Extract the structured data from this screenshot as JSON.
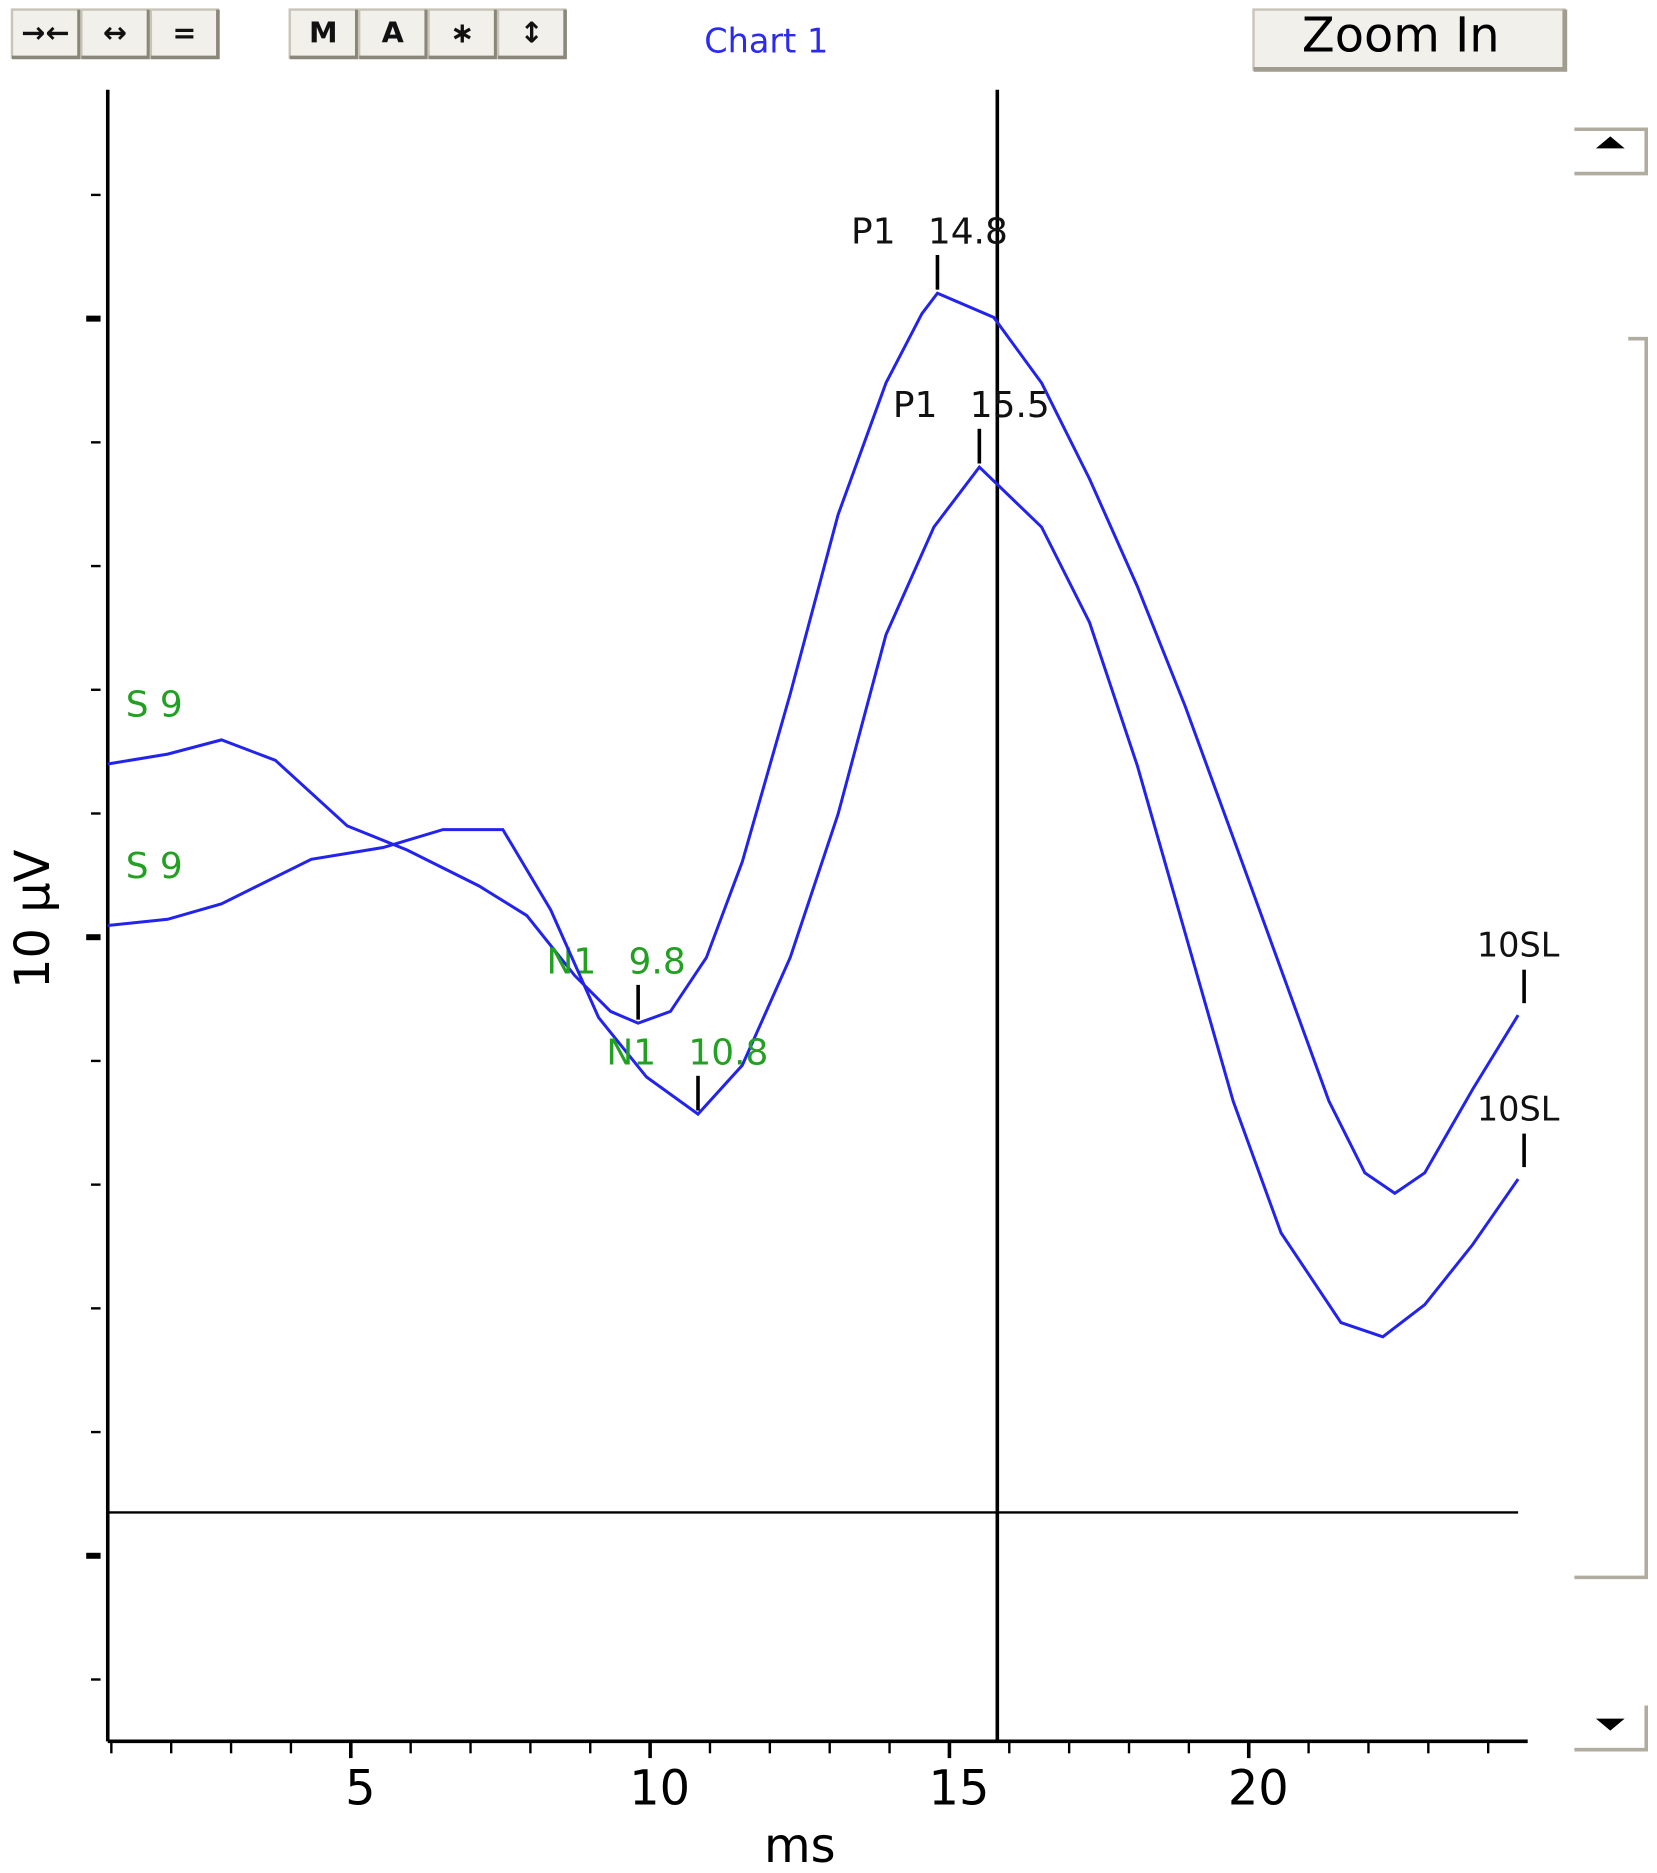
{
  "toolbar": {
    "buttons": [
      "→←",
      "↔",
      "=",
      "M",
      "A",
      "∗",
      "↕"
    ],
    "zoom": "Zoom In"
  },
  "chart_data": {
    "type": "line",
    "title": "Chart 1",
    "x_label": "ms",
    "y_label": "10 µV",
    "xlim": [
      0.94,
      24.5
    ],
    "ylim": [
      -3,
      23.7
    ],
    "xticks": [
      5,
      10,
      15,
      20
    ],
    "yticks": [
      -2,
      0,
      2,
      4,
      6,
      8,
      10,
      12,
      14,
      16,
      18,
      20,
      22
    ],
    "cursor": {
      "x": 15.8,
      "y": 0.7
    },
    "label_colors": {
      "name": "#22a022",
      "peak": "#111111"
    },
    "series": [
      {
        "name": "S 9",
        "end_label": "10SL",
        "color": "#2323ee",
        "x": [
          0.94,
          1.94,
          2.84,
          3.74,
          4.94,
          5.94,
          7.14,
          7.94,
          8.74,
          9.34,
          9.8,
          10.34,
          10.94,
          11.54,
          12.34,
          13.14,
          13.94,
          14.54,
          14.8,
          15.74,
          16.54,
          17.34,
          18.14,
          18.94,
          19.74,
          20.54,
          21.34,
          21.94,
          22.44,
          22.94,
          23.74,
          24.5
        ],
        "values": [
          12.8,
          12.96,
          13.19,
          12.86,
          11.8,
          11.41,
          10.83,
          10.35,
          9.38,
          8.8,
          8.61,
          8.8,
          9.67,
          11.22,
          13.93,
          16.83,
          18.96,
          20.08,
          20.41,
          20.02,
          18.96,
          17.41,
          15.67,
          13.73,
          11.61,
          9.48,
          7.35,
          6.19,
          5.86,
          6.19,
          7.54,
          8.74
        ],
        "peaks": [
          {
            "label": "N1",
            "x": 9.8,
            "color": "#22a022"
          },
          {
            "label": "P1",
            "x": 14.8,
            "color": "#111111"
          }
        ]
      },
      {
        "name": "S 9",
        "end_label": "10SL",
        "color": "#2323ee",
        "x": [
          0.94,
          1.94,
          2.84,
          4.34,
          5.54,
          6.54,
          7.54,
          8.34,
          9.14,
          9.94,
          10.8,
          11.54,
          12.34,
          13.14,
          13.94,
          14.74,
          15.5,
          16.54,
          17.34,
          18.14,
          18.94,
          19.74,
          20.54,
          21.54,
          22.24,
          22.94,
          23.74,
          24.5
        ],
        "values": [
          10.19,
          10.29,
          10.54,
          11.26,
          11.45,
          11.74,
          11.74,
          10.44,
          8.7,
          7.74,
          7.14,
          7.93,
          9.67,
          11.99,
          14.89,
          16.63,
          17.6,
          16.63,
          15.09,
          12.77,
          10.06,
          7.35,
          5.22,
          3.77,
          3.54,
          4.06,
          5.03,
          6.09
        ],
        "peaks": [
          {
            "label": "N1",
            "x": 10.8,
            "color": "#22a022"
          },
          {
            "label": "P1",
            "x": 15.5,
            "color": "#111111"
          }
        ]
      }
    ]
  }
}
